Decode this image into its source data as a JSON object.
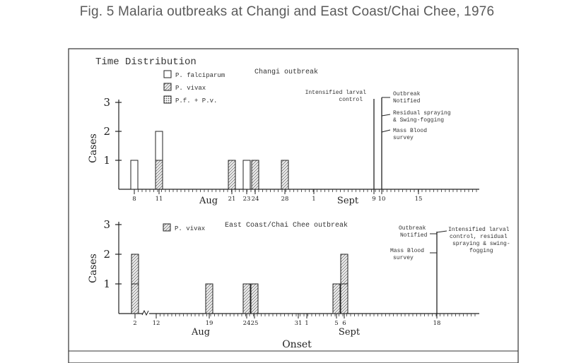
{
  "figure_title": "Fig. 5 Malaria outbreaks at Changi and East Coast/Chai Chee, 1976",
  "panel_title": "Time Distribution",
  "colors": {
    "ink": "#222222",
    "hatch": "#555555",
    "caption": "#5a5a5a"
  },
  "chart_data": [
    {
      "type": "bar",
      "subtitle": "Changi outbreak",
      "ylabel": "Cases",
      "ylim": [
        0,
        3
      ],
      "yticks": [
        "1",
        "2",
        "3"
      ],
      "legend": [
        {
          "name": "P. falciparum",
          "pattern": "open"
        },
        {
          "name": "P. vivax",
          "pattern": "hatched"
        },
        {
          "name": "P.f. + P.v.",
          "pattern": "dotted"
        }
      ],
      "legend_position": "top-left",
      "x_tick_labels": [
        "8",
        "11",
        "21",
        "23",
        "24",
        "28",
        "1",
        "9",
        "10",
        "15"
      ],
      "month_labels": [
        "Aug",
        "Sept"
      ],
      "bars": [
        {
          "date": "Aug 8",
          "stack": [
            {
              "species": "P. falciparum",
              "value": 1
            }
          ]
        },
        {
          "date": "Aug 11",
          "stack": [
            {
              "species": "P. vivax",
              "value": 1
            },
            {
              "species": "P. falciparum",
              "value": 1
            }
          ]
        },
        {
          "date": "Aug 21",
          "stack": [
            {
              "species": "P. vivax",
              "value": 1
            }
          ]
        },
        {
          "date": "Aug 23",
          "stack": [
            {
              "species": "P. falciparum",
              "value": 1
            }
          ]
        },
        {
          "date": "Aug 24",
          "stack": [
            {
              "species": "P. vivax",
              "value": 1
            }
          ]
        },
        {
          "date": "Aug 28",
          "stack": [
            {
              "species": "P. vivax",
              "value": 1
            }
          ]
        }
      ],
      "events": [
        {
          "date": "Sept 9",
          "label": "Intensified larval control"
        },
        {
          "date": "Sept 10",
          "label": "Outbreak Notified"
        },
        {
          "date": "Sept 10",
          "label": "Residual spraying & Swing-fogging"
        },
        {
          "date": "Sept 10",
          "label": "Mass Blood survey"
        }
      ]
    },
    {
      "type": "bar",
      "subtitle": "East Coast/Chai Chee outbreak",
      "ylabel": "Cases",
      "xlabel": "Onset",
      "ylim": [
        0,
        3
      ],
      "yticks": [
        "1",
        "2",
        "3"
      ],
      "legend": [
        {
          "name": "P. vivax",
          "pattern": "hatched"
        }
      ],
      "legend_position": "top-left",
      "x_tick_labels": [
        "2",
        "12",
        "19",
        "24",
        "25",
        "31",
        "1",
        "5",
        "6",
        "18"
      ],
      "month_labels": [
        "Aug",
        "Sept"
      ],
      "bars": [
        {
          "date": "Aug 2",
          "stack": [
            {
              "species": "P. vivax",
              "value": 2
            }
          ]
        },
        {
          "date": "Aug 19",
          "stack": [
            {
              "species": "P. vivax",
              "value": 1
            }
          ]
        },
        {
          "date": "Aug 24",
          "stack": [
            {
              "species": "P. vivax",
              "value": 1
            }
          ]
        },
        {
          "date": "Aug 25",
          "stack": [
            {
              "species": "P. vivax",
              "value": 1
            }
          ]
        },
        {
          "date": "Sept 5",
          "stack": [
            {
              "species": "P. vivax",
              "value": 1
            }
          ]
        },
        {
          "date": "Sept 6",
          "stack": [
            {
              "species": "P. vivax",
              "value": 2
            }
          ]
        }
      ],
      "events": [
        {
          "date": "Sept 18",
          "label": "Outbreak Notified"
        },
        {
          "date": "Sept 18",
          "label": "Intensified larval control, residual spraying & swing-fogging"
        },
        {
          "date": "Sept 18",
          "label": "Mass Blood survey"
        }
      ]
    }
  ]
}
